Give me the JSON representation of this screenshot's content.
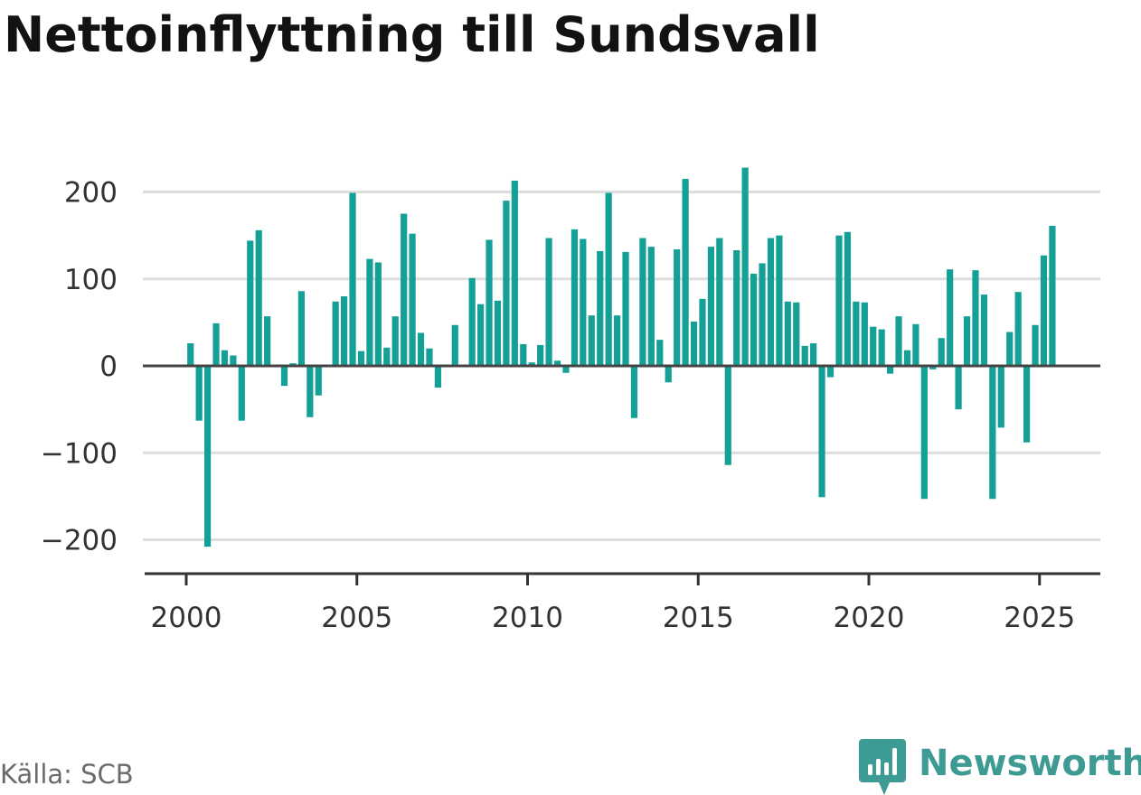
{
  "title": "Nettoinflyttning till Sundsvall",
  "source": "Källa: SCB",
  "brand": {
    "name": "Newsworthy",
    "icon": "newsworthy-logo-icon",
    "color": "#3d9b93"
  },
  "chart_data": {
    "type": "bar",
    "title": "Nettoinflyttning till Sundsvall",
    "xlabel": "",
    "ylabel": "",
    "frequency": "quarterly",
    "start_period": "2000 Q1",
    "bar_color": "#14a096",
    "grid": true,
    "ylim": [
      -230,
      230
    ],
    "xlim": [
      2000,
      2027
    ],
    "x_ticks": [
      {
        "value": 2000,
        "label": "2000"
      },
      {
        "value": 2005,
        "label": "2005"
      },
      {
        "value": 2010,
        "label": "2010"
      },
      {
        "value": 2015,
        "label": "2015"
      },
      {
        "value": 2020,
        "label": "2020"
      },
      {
        "value": 2025,
        "label": "2025"
      }
    ],
    "y_ticks": [
      {
        "value": 200,
        "label": "200"
      },
      {
        "value": 100,
        "label": "100"
      },
      {
        "value": 0,
        "label": "0"
      },
      {
        "value": -100,
        "label": "−100"
      },
      {
        "value": -200,
        "label": "−200"
      }
    ],
    "categories": [
      "2000 Q1",
      "2000 Q2",
      "2000 Q3",
      "2000 Q4",
      "2001 Q1",
      "2001 Q2",
      "2001 Q3",
      "2001 Q4",
      "2002 Q1",
      "2002 Q2",
      "2002 Q3",
      "2002 Q4",
      "2003 Q1",
      "2003 Q2",
      "2003 Q3",
      "2003 Q4",
      "2004 Q1",
      "2004 Q2",
      "2004 Q3",
      "2004 Q4",
      "2005 Q1",
      "2005 Q2",
      "2005 Q3",
      "2005 Q4",
      "2006 Q1",
      "2006 Q2",
      "2006 Q3",
      "2006 Q4",
      "2007 Q1",
      "2007 Q2",
      "2007 Q3",
      "2007 Q4",
      "2008 Q1",
      "2008 Q2",
      "2008 Q3",
      "2008 Q4",
      "2009 Q1",
      "2009 Q2",
      "2009 Q3",
      "2009 Q4",
      "2010 Q1",
      "2010 Q2",
      "2010 Q3",
      "2010 Q4",
      "2011 Q1",
      "2011 Q2",
      "2011 Q3",
      "2011 Q4",
      "2012 Q1",
      "2012 Q2",
      "2012 Q3",
      "2012 Q4",
      "2013 Q1",
      "2013 Q2",
      "2013 Q3",
      "2013 Q4",
      "2014 Q1",
      "2014 Q2",
      "2014 Q3",
      "2014 Q4",
      "2015 Q1",
      "2015 Q2",
      "2015 Q3",
      "2015 Q4",
      "2016 Q1",
      "2016 Q2",
      "2016 Q3",
      "2016 Q4",
      "2017 Q1",
      "2017 Q2",
      "2017 Q3",
      "2017 Q4",
      "2018 Q1",
      "2018 Q2",
      "2018 Q3",
      "2018 Q4",
      "2019 Q1",
      "2019 Q2",
      "2019 Q3",
      "2019 Q4",
      "2020 Q1",
      "2020 Q2",
      "2020 Q3",
      "2020 Q4",
      "2021 Q1",
      "2021 Q2",
      "2021 Q3",
      "2021 Q4",
      "2022 Q1",
      "2022 Q2",
      "2022 Q3",
      "2022 Q4",
      "2023 Q1",
      "2023 Q2",
      "2023 Q3",
      "2023 Q4",
      "2024 Q1",
      "2024 Q2",
      "2024 Q3",
      "2024 Q4",
      "2025 Q1",
      "2025 Q2"
    ],
    "values": [
      26,
      -63,
      -208,
      49,
      18,
      12,
      -63,
      144,
      156,
      57,
      0,
      -23,
      3,
      86,
      -59,
      -34,
      0,
      74,
      80,
      199,
      17,
      123,
      119,
      21,
      57,
      175,
      152,
      38,
      20,
      -25,
      0,
      47,
      0,
      101,
      71,
      145,
      75,
      190,
      213,
      25,
      4,
      24,
      147,
      6,
      -8,
      157,
      146,
      58,
      132,
      199,
      58,
      131,
      -60,
      147,
      137,
      30,
      -19,
      134,
      215,
      51,
      77,
      137,
      147,
      -114,
      133,
      228,
      106,
      118,
      147,
      150,
      74,
      73,
      23,
      26,
      -151,
      -13,
      150,
      154,
      74,
      73,
      45,
      42,
      -9,
      57,
      18,
      48,
      -153,
      -4,
      32,
      111,
      -50,
      57,
      110,
      82,
      -153,
      -71,
      39,
      85,
      -88,
      47,
      127,
      161
    ]
  }
}
